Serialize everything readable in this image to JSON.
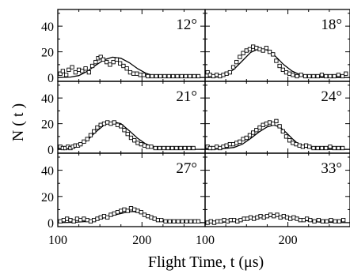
{
  "chart_data": {
    "type": "scatter",
    "xlabel": "Flight Time, t (μs)",
    "ylabel": "N ( t )",
    "xlim": [
      100,
      275
    ],
    "ylim": [
      -3,
      53
    ],
    "x_ticks": [
      100,
      200
    ],
    "y_ticks": [
      0,
      20,
      40
    ],
    "x_tick_labels": [
      {
        "panel_column": "left",
        "labels": [
          "100",
          "200"
        ]
      },
      {
        "panel_column": "right",
        "labels": [
          "100",
          "200"
        ]
      }
    ],
    "panels": [
      {
        "label": "12°",
        "fit": [
          [
            100,
            0
          ],
          [
            115,
            0.3
          ],
          [
            125,
            1.5
          ],
          [
            135,
            4.8
          ],
          [
            145,
            9.5
          ],
          [
            155,
            13.8
          ],
          [
            165,
            15.8
          ],
          [
            175,
            15
          ],
          [
            185,
            11.5
          ],
          [
            195,
            6.8
          ],
          [
            205,
            3.2
          ],
          [
            215,
            1.2
          ],
          [
            225,
            0.4
          ],
          [
            240,
            0
          ],
          [
            275,
            0
          ]
        ],
        "points": [
          [
            103,
            3
          ],
          [
            106,
            5
          ],
          [
            110,
            2
          ],
          [
            113,
            6
          ],
          [
            117,
            8
          ],
          [
            121,
            4
          ],
          [
            125,
            6
          ],
          [
            129,
            5
          ],
          [
            133,
            7
          ],
          [
            137,
            4
          ],
          [
            141,
            9
          ],
          [
            145,
            12
          ],
          [
            148,
            15
          ],
          [
            151,
            16
          ],
          [
            154,
            14
          ],
          [
            158,
            12
          ],
          [
            162,
            10
          ],
          [
            166,
            12
          ],
          [
            170,
            14
          ],
          [
            174,
            11
          ],
          [
            178,
            9
          ],
          [
            182,
            7
          ],
          [
            186,
            4
          ],
          [
            190,
            3
          ],
          [
            194,
            3
          ],
          [
            198,
            2
          ],
          [
            202,
            2
          ],
          [
            207,
            1
          ],
          [
            212,
            1
          ],
          [
            217,
            1
          ],
          [
            222,
            1
          ],
          [
            227,
            1
          ],
          [
            232,
            1
          ],
          [
            237,
            1
          ],
          [
            242,
            1
          ],
          [
            247,
            1
          ],
          [
            252,
            1
          ],
          [
            257,
            1
          ],
          [
            262,
            1
          ],
          [
            267,
            1
          ]
        ]
      },
      {
        "label": "18°",
        "fit": [
          [
            100,
            0
          ],
          [
            115,
            0.4
          ],
          [
            125,
            2
          ],
          [
            135,
            6.5
          ],
          [
            145,
            13
          ],
          [
            155,
            19.5
          ],
          [
            165,
            22.5
          ],
          [
            175,
            21.5
          ],
          [
            185,
            16.5
          ],
          [
            195,
            10
          ],
          [
            205,
            5
          ],
          [
            215,
            2
          ],
          [
            225,
            0.6
          ],
          [
            240,
            0.1
          ],
          [
            275,
            0
          ]
        ],
        "points": [
          [
            103,
            4
          ],
          [
            106,
            2
          ],
          [
            110,
            1
          ],
          [
            114,
            2
          ],
          [
            118,
            1
          ],
          [
            122,
            2
          ],
          [
            126,
            3
          ],
          [
            130,
            4
          ],
          [
            134,
            8
          ],
          [
            138,
            12
          ],
          [
            142,
            16
          ],
          [
            146,
            19
          ],
          [
            150,
            21
          ],
          [
            154,
            22
          ],
          [
            158,
            24
          ],
          [
            162,
            23
          ],
          [
            166,
            22
          ],
          [
            170,
            21
          ],
          [
            174,
            23
          ],
          [
            178,
            20
          ],
          [
            182,
            18
          ],
          [
            186,
            13
          ],
          [
            190,
            9
          ],
          [
            194,
            6
          ],
          [
            198,
            4
          ],
          [
            202,
            3
          ],
          [
            206,
            2
          ],
          [
            211,
            1
          ],
          [
            216,
            2
          ],
          [
            221,
            1
          ],
          [
            226,
            1
          ],
          [
            231,
            1
          ],
          [
            236,
            1
          ],
          [
            241,
            2
          ],
          [
            246,
            1
          ],
          [
            251,
            1
          ],
          [
            256,
            1
          ],
          [
            261,
            2
          ],
          [
            266,
            1
          ],
          [
            270,
            3
          ]
        ]
      },
      {
        "label": "21°",
        "fit": [
          [
            100,
            0
          ],
          [
            115,
            0.5
          ],
          [
            125,
            2.5
          ],
          [
            135,
            7
          ],
          [
            145,
            13.5
          ],
          [
            155,
            19
          ],
          [
            165,
            21.5
          ],
          [
            175,
            20
          ],
          [
            185,
            14.5
          ],
          [
            195,
            8.5
          ],
          [
            205,
            4
          ],
          [
            215,
            1.5
          ],
          [
            225,
            0.5
          ],
          [
            240,
            0.1
          ],
          [
            275,
            0
          ]
        ],
        "points": [
          [
            103,
            2
          ],
          [
            106,
            1
          ],
          [
            109,
            1
          ],
          [
            112,
            2
          ],
          [
            115,
            1
          ],
          [
            118,
            2
          ],
          [
            121,
            3
          ],
          [
            124,
            3
          ],
          [
            127,
            4
          ],
          [
            131,
            6
          ],
          [
            135,
            8
          ],
          [
            139,
            11
          ],
          [
            143,
            14
          ],
          [
            147,
            17
          ],
          [
            151,
            19
          ],
          [
            155,
            20
          ],
          [
            159,
            21
          ],
          [
            163,
            20
          ],
          [
            167,
            21
          ],
          [
            171,
            19
          ],
          [
            175,
            18
          ],
          [
            179,
            15
          ],
          [
            183,
            12
          ],
          [
            187,
            9
          ],
          [
            191,
            7
          ],
          [
            195,
            5
          ],
          [
            199,
            4
          ],
          [
            203,
            3
          ],
          [
            207,
            2
          ],
          [
            211,
            2
          ],
          [
            216,
            1
          ],
          [
            221,
            1
          ],
          [
            226,
            1
          ],
          [
            231,
            1
          ],
          [
            236,
            1
          ],
          [
            241,
            1
          ],
          [
            246,
            1
          ],
          [
            251,
            1
          ],
          [
            256,
            1
          ],
          [
            261,
            1
          ]
        ]
      },
      {
        "label": "24°",
        "fit": [
          [
            100,
            0
          ],
          [
            120,
            0.3
          ],
          [
            135,
            1.5
          ],
          [
            145,
            4
          ],
          [
            155,
            8.5
          ],
          [
            165,
            13.5
          ],
          [
            175,
            17.5
          ],
          [
            183,
            19
          ],
          [
            190,
            17.5
          ],
          [
            198,
            13
          ],
          [
            205,
            8.5
          ],
          [
            212,
            4.5
          ],
          [
            220,
            2
          ],
          [
            230,
            0.5
          ],
          [
            245,
            0
          ],
          [
            275,
            0
          ]
        ],
        "points": [
          [
            103,
            2
          ],
          [
            106,
            1
          ],
          [
            110,
            1
          ],
          [
            114,
            2
          ],
          [
            118,
            1
          ],
          [
            122,
            2
          ],
          [
            126,
            3
          ],
          [
            130,
            4
          ],
          [
            134,
            4
          ],
          [
            138,
            5
          ],
          [
            142,
            6
          ],
          [
            146,
            8
          ],
          [
            150,
            9
          ],
          [
            154,
            11
          ],
          [
            158,
            13
          ],
          [
            162,
            15
          ],
          [
            166,
            17
          ],
          [
            170,
            19
          ],
          [
            174,
            20
          ],
          [
            178,
            21
          ],
          [
            182,
            20
          ],
          [
            186,
            22
          ],
          [
            190,
            18
          ],
          [
            194,
            14
          ],
          [
            198,
            10
          ],
          [
            202,
            7
          ],
          [
            206,
            5
          ],
          [
            210,
            4
          ],
          [
            214,
            3
          ],
          [
            218,
            2
          ],
          [
            222,
            3
          ],
          [
            226,
            2
          ],
          [
            231,
            1
          ],
          [
            236,
            1
          ],
          [
            241,
            1
          ],
          [
            246,
            1
          ],
          [
            251,
            2
          ],
          [
            256,
            1
          ],
          [
            261,
            1
          ],
          [
            266,
            1
          ]
        ]
      },
      {
        "label": "27°",
        "fit": [
          [
            100,
            0
          ],
          [
            120,
            0.3
          ],
          [
            135,
            1
          ],
          [
            145,
            2.2
          ],
          [
            155,
            3.8
          ],
          [
            165,
            5.5
          ],
          [
            175,
            7
          ],
          [
            183,
            8.2
          ],
          [
            190,
            8.5
          ],
          [
            198,
            7.5
          ],
          [
            207,
            5.5
          ],
          [
            217,
            3
          ],
          [
            227,
            1.2
          ],
          [
            240,
            0.3
          ],
          [
            275,
            0
          ]
        ],
        "points": [
          [
            103,
            1
          ],
          [
            107,
            2
          ],
          [
            111,
            3
          ],
          [
            115,
            2
          ],
          [
            119,
            1
          ],
          [
            123,
            3
          ],
          [
            127,
            2
          ],
          [
            131,
            3
          ],
          [
            135,
            2
          ],
          [
            139,
            1
          ],
          [
            143,
            2
          ],
          [
            147,
            3
          ],
          [
            151,
            4
          ],
          [
            155,
            5
          ],
          [
            159,
            4
          ],
          [
            163,
            6
          ],
          [
            167,
            7
          ],
          [
            171,
            8
          ],
          [
            175,
            9
          ],
          [
            179,
            10
          ],
          [
            183,
            9
          ],
          [
            187,
            11
          ],
          [
            191,
            10
          ],
          [
            195,
            9
          ],
          [
            199,
            8
          ],
          [
            203,
            6
          ],
          [
            207,
            5
          ],
          [
            211,
            4
          ],
          [
            215,
            3
          ],
          [
            219,
            2
          ],
          [
            223,
            2
          ],
          [
            228,
            1
          ],
          [
            233,
            1
          ],
          [
            238,
            1
          ],
          [
            243,
            1
          ],
          [
            248,
            1
          ],
          [
            253,
            1
          ],
          [
            258,
            1
          ],
          [
            263,
            1
          ],
          [
            267,
            1
          ]
        ]
      },
      {
        "label": "33°",
        "fit": [
          [
            100,
            0
          ],
          [
            120,
            0.3
          ],
          [
            135,
            1
          ],
          [
            145,
            1.8
          ],
          [
            155,
            2.8
          ],
          [
            165,
            3.8
          ],
          [
            175,
            4.6
          ],
          [
            185,
            5
          ],
          [
            195,
            4.6
          ],
          [
            205,
            3.6
          ],
          [
            215,
            2.4
          ],
          [
            225,
            1.3
          ],
          [
            240,
            0.4
          ],
          [
            275,
            0
          ]
        ],
        "points": [
          [
            103,
            0
          ],
          [
            107,
            1
          ],
          [
            111,
            0
          ],
          [
            115,
            1
          ],
          [
            119,
            1
          ],
          [
            123,
            2
          ],
          [
            127,
            1
          ],
          [
            131,
            2
          ],
          [
            135,
            2
          ],
          [
            139,
            1
          ],
          [
            143,
            2
          ],
          [
            147,
            3
          ],
          [
            151,
            3
          ],
          [
            155,
            4
          ],
          [
            159,
            3
          ],
          [
            163,
            4
          ],
          [
            167,
            5
          ],
          [
            171,
            4
          ],
          [
            175,
            5
          ],
          [
            179,
            6
          ],
          [
            183,
            5
          ],
          [
            187,
            6
          ],
          [
            191,
            4
          ],
          [
            195,
            5
          ],
          [
            199,
            4
          ],
          [
            203,
            3
          ],
          [
            207,
            4
          ],
          [
            211,
            3
          ],
          [
            215,
            2
          ],
          [
            219,
            2
          ],
          [
            223,
            3
          ],
          [
            227,
            2
          ],
          [
            232,
            1
          ],
          [
            237,
            2
          ],
          [
            242,
            1
          ],
          [
            247,
            1
          ],
          [
            252,
            2
          ],
          [
            257,
            1
          ],
          [
            262,
            1
          ],
          [
            267,
            2
          ]
        ]
      }
    ]
  }
}
